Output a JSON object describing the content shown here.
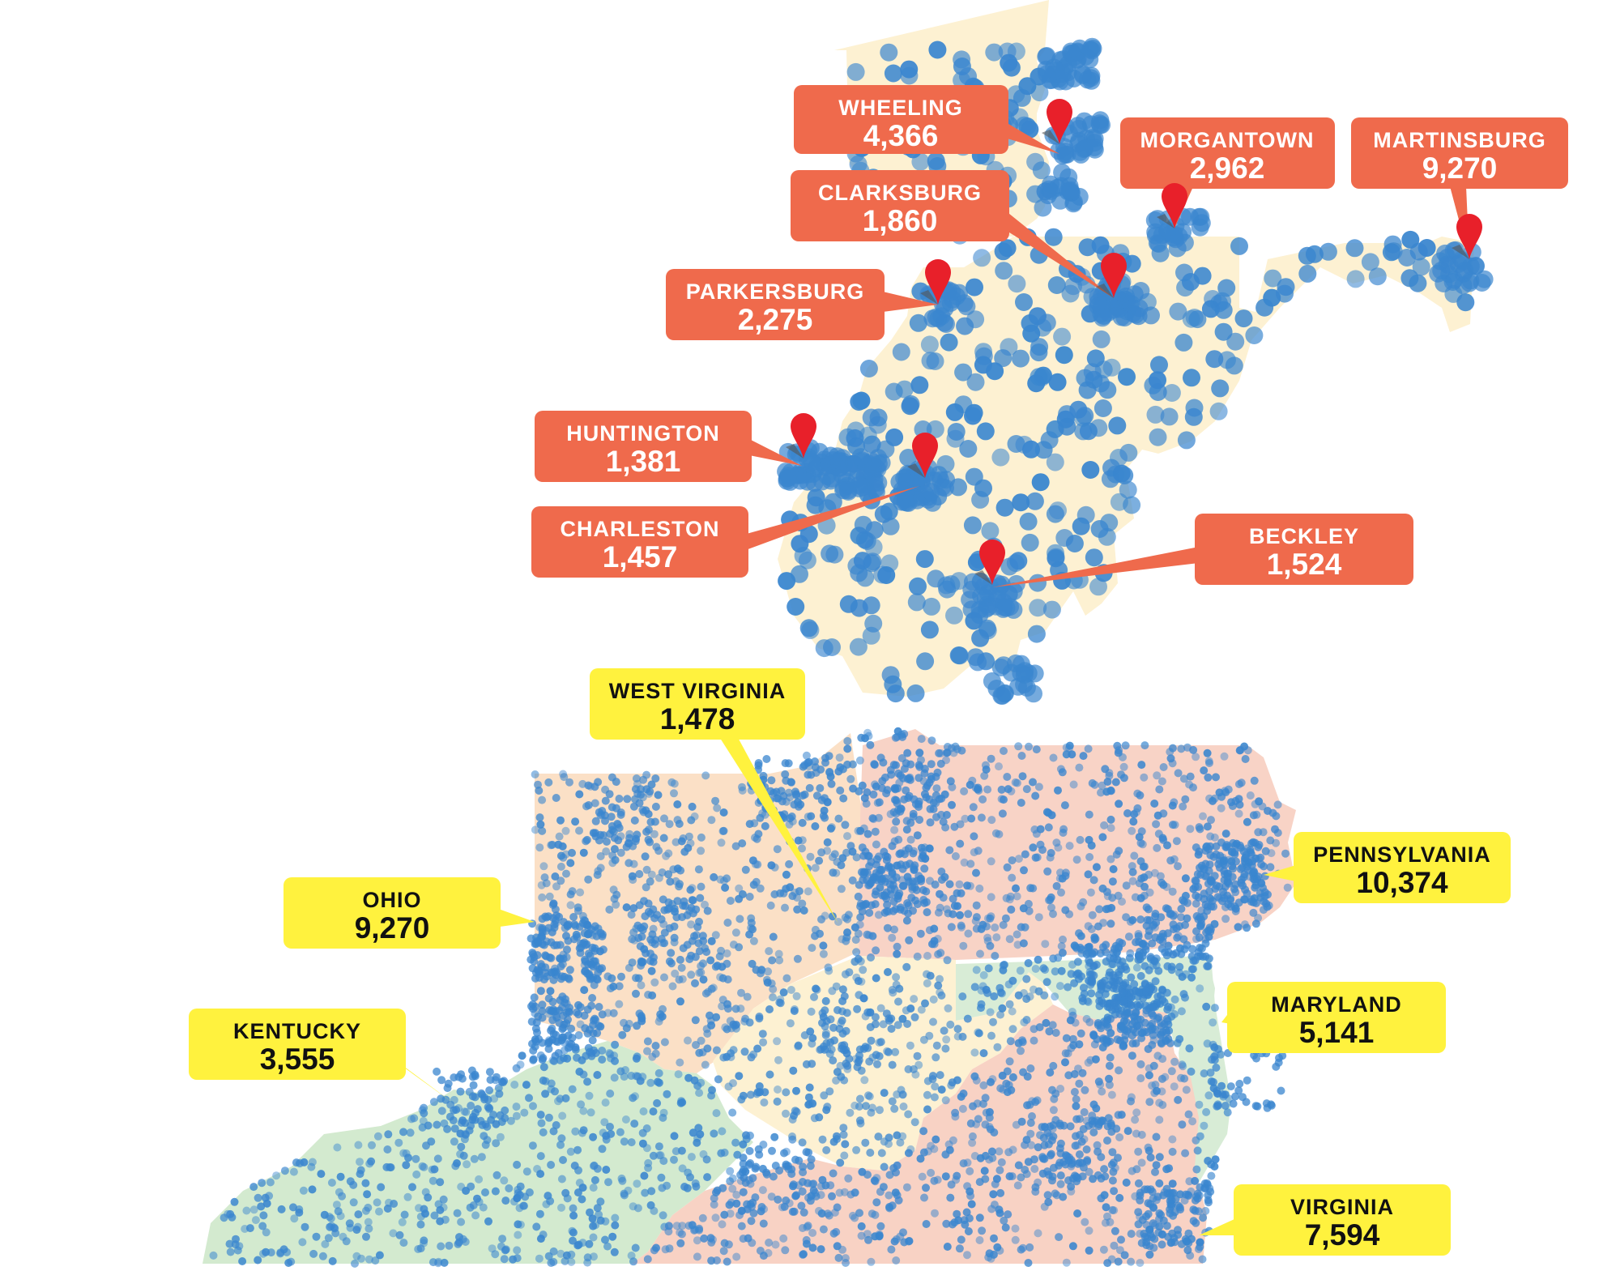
{
  "colors": {
    "dot": "#3a86cf",
    "city_callout": "#ef6a4c",
    "state_callout": "#fff23e",
    "marker": "#e8202a",
    "wv_fill": "#fdf1d2",
    "oh_fill": "#fbe0c6",
    "pa_fill": "#f8d3c6",
    "ky_fill": "#d3eacf",
    "md_fill": "#d8ecd6",
    "va_fill": "#f8d2c4"
  },
  "cities": [
    {
      "id": "wheeling",
      "name": "WHEELING",
      "value": "4,366"
    },
    {
      "id": "morgantown",
      "name": "MORGANTOWN",
      "value": "2,962"
    },
    {
      "id": "martinsburg",
      "name": "MARTINSBURG",
      "value": "9,270"
    },
    {
      "id": "clarksburg",
      "name": "CLARKSBURG",
      "value": "1,860"
    },
    {
      "id": "parkersburg",
      "name": "PARKERSBURG",
      "value": "2,275"
    },
    {
      "id": "huntington",
      "name": "HUNTINGTON",
      "value": "1,381"
    },
    {
      "id": "charleston",
      "name": "CHARLESTON",
      "value": "1,457"
    },
    {
      "id": "beckley",
      "name": "BECKLEY",
      "value": "1,524"
    }
  ],
  "states": [
    {
      "id": "west-virginia",
      "name": "WEST VIRGINIA",
      "value": "1,478"
    },
    {
      "id": "ohio",
      "name": "OHIO",
      "value": "9,270"
    },
    {
      "id": "pennsylvania",
      "name": "PENNSYLVANIA",
      "value": "10,374"
    },
    {
      "id": "kentucky",
      "name": "KENTUCKY",
      "value": "3,555"
    },
    {
      "id": "maryland",
      "name": "MARYLAND",
      "value": "5,141"
    },
    {
      "id": "virginia",
      "name": "VIRGINIA",
      "value": "7,594"
    }
  ]
}
